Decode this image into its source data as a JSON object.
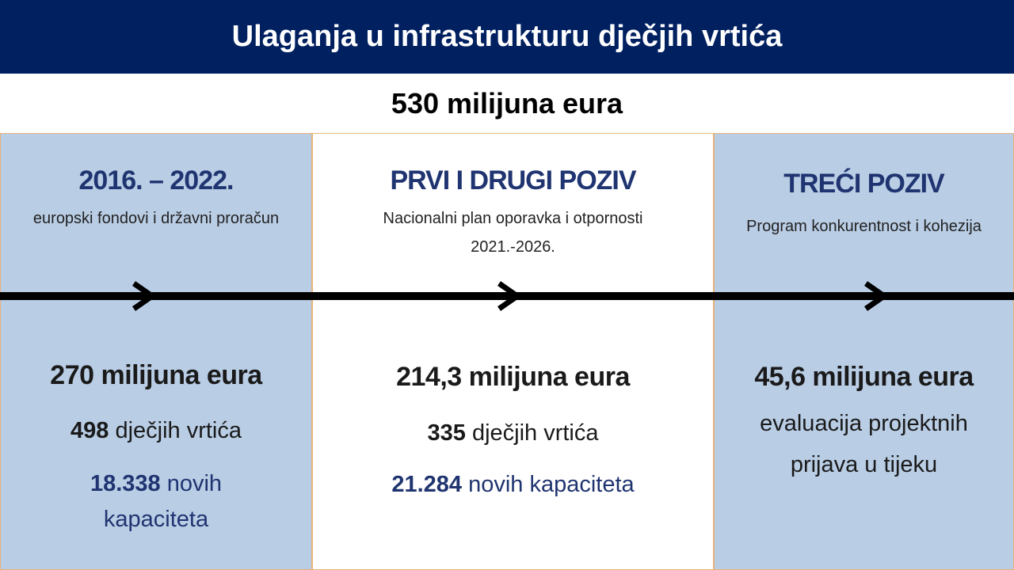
{
  "header": {
    "title": "Ulaganja u infrastrukturu dječjih vrtića"
  },
  "total": "530 milijuna eura",
  "columns": [
    {
      "title": "2016. – 2022.",
      "subtitle": "europski fondovi i državni proračun",
      "amount": "270 milijuna eura",
      "kindergartens_num": "498",
      "kindergartens_label": "dječjih vrtića",
      "capacity_num": "18.338",
      "capacity_label": "novih kapaciteta"
    },
    {
      "title": "PRVI I DRUGI POZIV",
      "subtitle_line1": "Nacionalni plan oporavka i otpornosti",
      "subtitle_line2": "2021.-2026.",
      "amount": "214,3 milijuna eura",
      "kindergartens_num": "335",
      "kindergartens_label": "dječjih vrtića",
      "capacity_num": "21.284",
      "capacity_label": "novih kapaciteta"
    },
    {
      "title": "TREĆI POZIV",
      "subtitle": "Program konkurentnost i kohezija",
      "amount": "45,6 milijuna eura",
      "status_line1": "evaluacija projektnih",
      "status_line2": "prijava u tijeku"
    }
  ],
  "colors": {
    "header_bg": "#002060",
    "column_bg": "#b9cde5",
    "accent_text": "#1f3470"
  },
  "icons": [
    "arrow-right-icon",
    "arrow-right-icon",
    "arrow-right-icon"
  ]
}
